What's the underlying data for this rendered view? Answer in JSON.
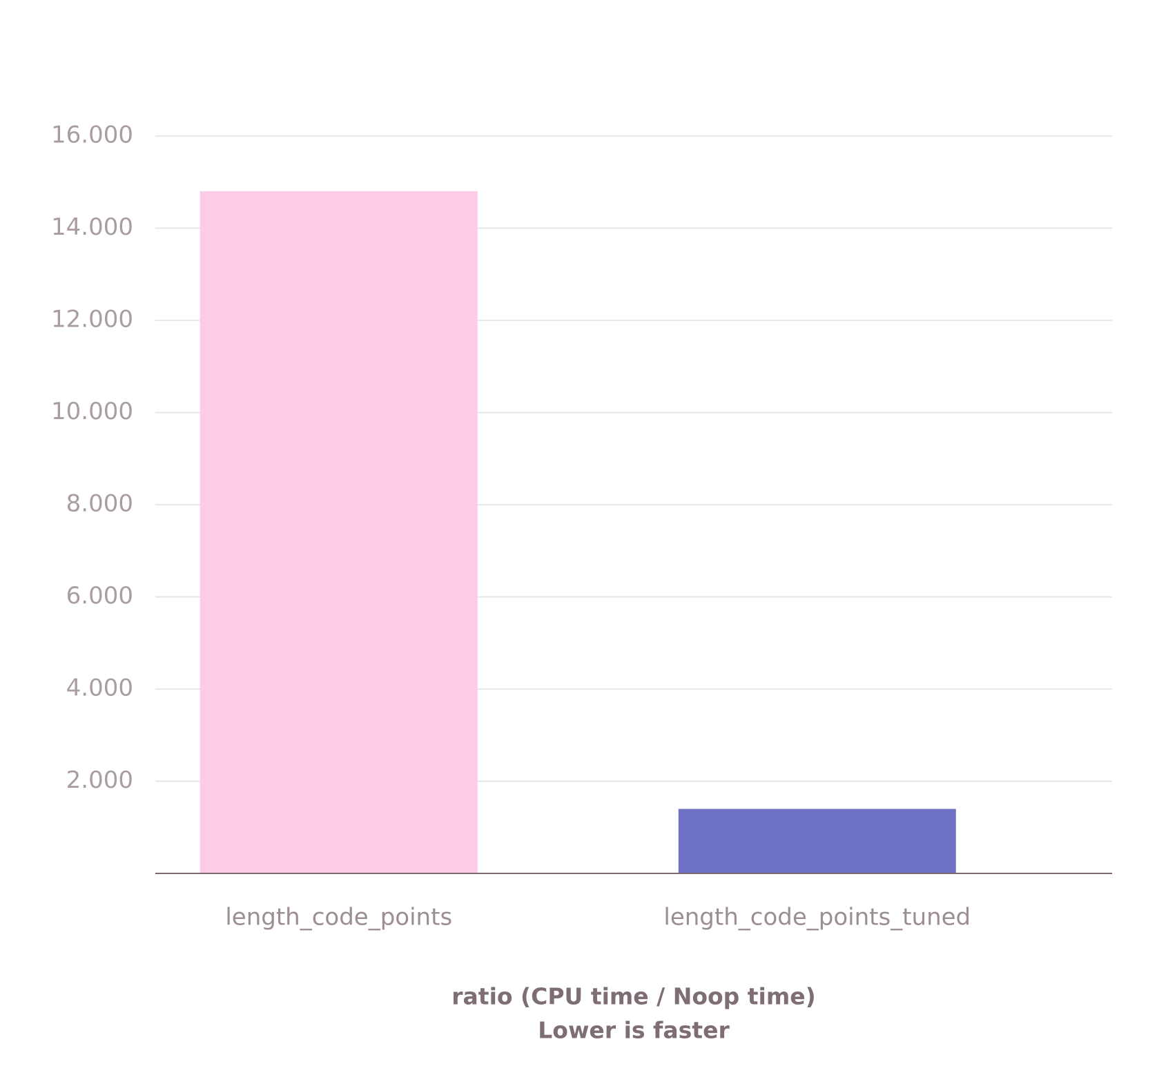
{
  "chart_data": {
    "type": "bar",
    "categories": [
      "length_code_points",
      "length_code_points_tuned"
    ],
    "values": [
      14.8,
      1.4
    ],
    "colors": [
      "#fccbe6",
      "#6e70c4"
    ],
    "ylim": [
      0,
      16
    ],
    "yticks": [
      {
        "value": 2,
        "label": "2.000"
      },
      {
        "value": 4,
        "label": "4.000"
      },
      {
        "value": 6,
        "label": "6.000"
      },
      {
        "value": 8,
        "label": "8.000"
      },
      {
        "value": 10,
        "label": "10.000"
      },
      {
        "value": 12,
        "label": "12.000"
      },
      {
        "value": 14,
        "label": "14.000"
      },
      {
        "value": 16,
        "label": "16.000"
      }
    ],
    "grid": true,
    "xlabel": [
      "ratio (CPU time / Noop time)",
      "Lower is faster"
    ]
  }
}
